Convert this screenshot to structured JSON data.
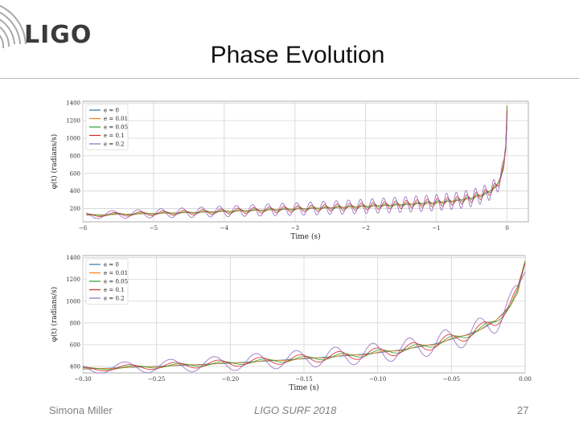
{
  "slide": {
    "logo": "LIGO",
    "title": "Phase Evolution",
    "footer_left": "Simona Miller",
    "footer_center": "LIGO SURF 2018",
    "footer_right": "27"
  },
  "colors": {
    "e0": "#1f77b4",
    "e001": "#ff7f0e",
    "e005": "#2ca02c",
    "e01": "#d62728",
    "e02": "#9467bd"
  },
  "chart_data": [
    {
      "type": "line",
      "title": "",
      "xlabel": "Time (s)",
      "ylabel": "φ(t) (radians/s)",
      "xlim": [
        -6.0,
        0.3
      ],
      "ylim": [
        50,
        1420
      ],
      "xticks": [
        -6,
        -5,
        -4,
        -3,
        -2,
        -1,
        0
      ],
      "yticks": [
        200,
        400,
        600,
        800,
        1000,
        1200,
        1400
      ],
      "grid": true,
      "legend": "top-left",
      "series_names": [
        "e = 0",
        "e = 0.01",
        "e = 0.05",
        "e = 0.1",
        "e = 0.2"
      ],
      "base_curve": {
        "t": [
          -5.95,
          -5.5,
          -5.0,
          -4.5,
          -4.0,
          -3.5,
          -3.0,
          -2.5,
          -2.0,
          -1.5,
          -1.0,
          -0.7,
          -0.5,
          -0.3,
          -0.15,
          -0.05,
          -0.02,
          0.0
        ],
        "phi": [
          125,
          135,
          145,
          155,
          168,
          182,
          195,
          210,
          226,
          245,
          268,
          292,
          320,
          370,
          450,
          650,
          900,
          1370
        ]
      },
      "oscillation": {
        "freq_start_hz": 2.2,
        "freq_end_hz": 8.0,
        "amplitude": {
          "e = 0": 0,
          "e = 0.01": 3,
          "e = 0.05": 10,
          "e = 0.1": 20,
          "e = 0.2": 40
        }
      }
    },
    {
      "type": "line",
      "title": "",
      "xlabel": "Time (s)",
      "ylabel": "φ(t) (radians/s)",
      "xlim": [
        -0.3,
        0.0
      ],
      "ylim": [
        340,
        1420
      ],
      "xticks": [
        -0.3,
        -0.25,
        -0.2,
        -0.15,
        -0.1,
        -0.05,
        0.0
      ],
      "xtick_labels": [
        "−0.30",
        "−0.25",
        "−0.20",
        "−0.15",
        "−0.10",
        "−0.05",
        "0.00"
      ],
      "yticks": [
        400,
        600,
        800,
        1000,
        1200,
        1400
      ],
      "grid": true,
      "legend": "top-left",
      "series_names": [
        "e = 0",
        "e = 0.01",
        "e = 0.05",
        "e = 0.1",
        "e = 0.2"
      ],
      "base_curve": {
        "t": [
          -0.3,
          -0.25,
          -0.2,
          -0.15,
          -0.12,
          -0.1,
          -0.08,
          -0.06,
          -0.04,
          -0.03,
          -0.02,
          -0.01,
          -0.005,
          0.0
        ],
        "phi": [
          375,
          400,
          430,
          470,
          500,
          525,
          560,
          610,
          690,
          740,
          820,
          960,
          1080,
          1360
        ]
      },
      "oscillation": {
        "freq_start_hz": 30,
        "freq_end_hz": 45,
        "amplitude": {
          "e = 0": 0,
          "e = 0.01": 4,
          "e = 0.05": 12,
          "e = 0.1": 22,
          "e = 0.2": 45
        }
      }
    }
  ]
}
